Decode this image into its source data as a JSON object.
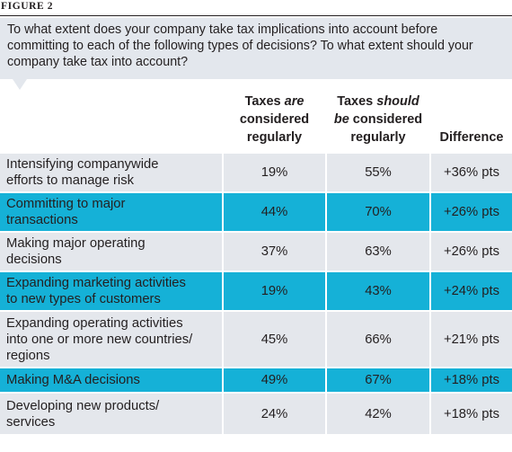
{
  "figure_label": "FIGURE 2",
  "question_lines": [
    "To what extent does your company take tax implications into account before",
    "committing to each of the following types of decisions? To what extent should your",
    "company take tax into account?"
  ],
  "header": {
    "col1": {
      "line1_a": "Taxes ",
      "line1_b": "are",
      "line2": "considered",
      "line3": "regularly"
    },
    "col2": {
      "line1_a": "Taxes ",
      "line1_b": "should",
      "line2_a": "be",
      "line2_b": " considered",
      "line3": "regularly"
    },
    "col3": {
      "line1": "Difference"
    }
  },
  "chart_data": {
    "type": "table",
    "columns": [
      "Taxes are considered regularly",
      "Taxes should be considered regularly",
      "Difference"
    ],
    "rows": [
      {
        "label_lines": [
          "Intensifying companywide",
          "efforts to manage risk"
        ],
        "are": "19%",
        "should": "55%",
        "difference": "+36% pts"
      },
      {
        "label_lines": [
          "Committing to major",
          "transactions"
        ],
        "are": "44%",
        "should": "70%",
        "difference": "+26% pts"
      },
      {
        "label_lines": [
          "Making major operating",
          "decisions"
        ],
        "are": "37%",
        "should": "63%",
        "difference": "+26% pts"
      },
      {
        "label_lines": [
          "Expanding marketing activities",
          "to new types of customers"
        ],
        "are": "19%",
        "should": "43%",
        "difference": "+24% pts"
      },
      {
        "label_lines": [
          "Expanding operating activities",
          "into one or more new countries/",
          "regions"
        ],
        "are": "45%",
        "should": "66%",
        "difference": "+21% pts"
      },
      {
        "label_lines": [
          "Making M&A decisions"
        ],
        "are": "49%",
        "should": "67%",
        "difference": "+18% pts"
      },
      {
        "label_lines": [
          "Developing new products/",
          "services"
        ],
        "are": "24%",
        "should": "42%",
        "difference": "+18% pts"
      }
    ]
  },
  "colors": {
    "stripe_light": "#e4e7ec",
    "stripe_blue": "#15b1d7"
  }
}
